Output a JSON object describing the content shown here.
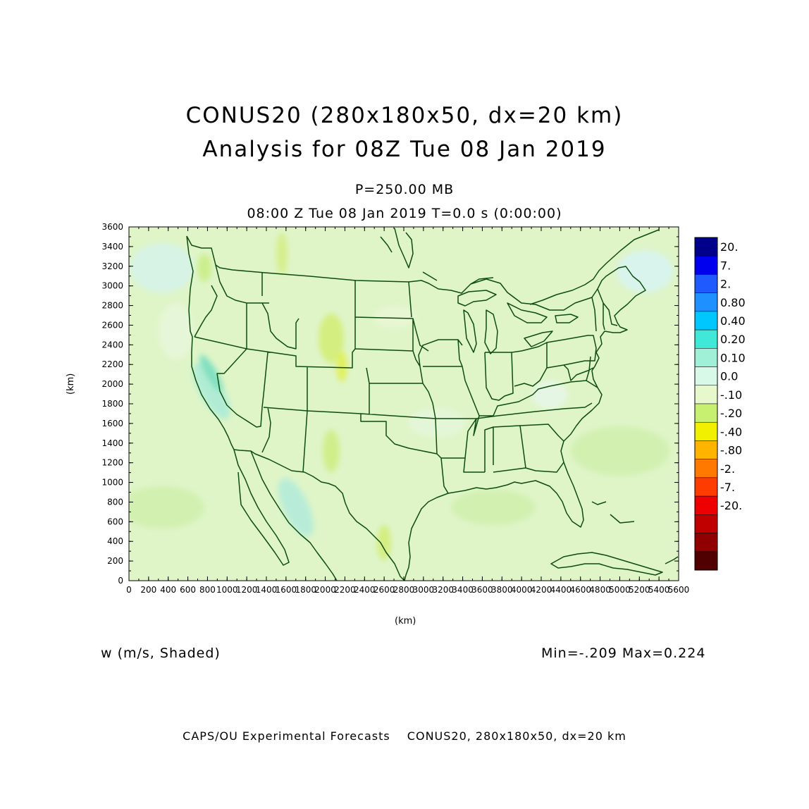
{
  "title": {
    "line1": "CONUS20 (280x180x50, dx=20 km)",
    "line2": "Analysis for 08Z Tue 08 Jan 2019"
  },
  "subtitle": {
    "level": "P=250.00 MB",
    "time": "08:00 Z Tue 08 Jan 2019    T=0.0 s (0:00:00)"
  },
  "variable_label": "w (m/s, Shaded)",
  "minmax": "Min=-.209 Max=0.224",
  "footer": {
    "left": "CAPS/OU Experimental Forecasts",
    "right": "CONUS20, 280x180x50, dx=20 km"
  },
  "axes": {
    "x_label": "(km)",
    "y_label": "(km)",
    "x_ticks": [
      "0",
      "200",
      "400",
      "600",
      "800",
      "1000",
      "1200",
      "1400",
      "1600",
      "1800",
      "2000",
      "2200",
      "2400",
      "2600",
      "2800",
      "3000",
      "3200",
      "3400",
      "3600",
      "3800",
      "4000",
      "4200",
      "4400",
      "4600",
      "4800",
      "5000",
      "5200",
      "5400",
      "5600"
    ],
    "y_ticks": [
      "0",
      "200",
      "400",
      "600",
      "800",
      "1000",
      "1200",
      "1400",
      "1600",
      "1800",
      "2000",
      "2200",
      "2400",
      "2600",
      "2800",
      "3000",
      "3200",
      "3400",
      "3600"
    ],
    "x_range": [
      0,
      5600
    ],
    "y_range": [
      0,
      3600
    ]
  },
  "colorbar": [
    {
      "label": "20.",
      "color": "#00008b"
    },
    {
      "label": "7.",
      "color": "#0000ee"
    },
    {
      "label": "2.",
      "color": "#1e5aff"
    },
    {
      "label": "0.80",
      "color": "#1e90ff"
    },
    {
      "label": "0.40",
      "color": "#00c8ff"
    },
    {
      "label": "0.20",
      "color": "#40e8d8"
    },
    {
      "label": "0.10",
      "color": "#a0f0d8"
    },
    {
      "label": "0.0",
      "color": "#d8f8e8"
    },
    {
      "label": "-.10",
      "color": "#e6f8cc"
    },
    {
      "label": "-.20",
      "color": "#c8f070"
    },
    {
      "label": "-.40",
      "color": "#f0f000"
    },
    {
      "label": "-.80",
      "color": "#ffb400"
    },
    {
      "label": "-2.",
      "color": "#ff7800"
    },
    {
      "label": "-7.",
      "color": "#ff3c00"
    },
    {
      "label": "-20.",
      "color": "#ee0000"
    },
    {
      "label": "",
      "color": "#c00000"
    },
    {
      "label": "",
      "color": "#900000"
    },
    {
      "label": "",
      "color": "#500000"
    }
  ]
}
